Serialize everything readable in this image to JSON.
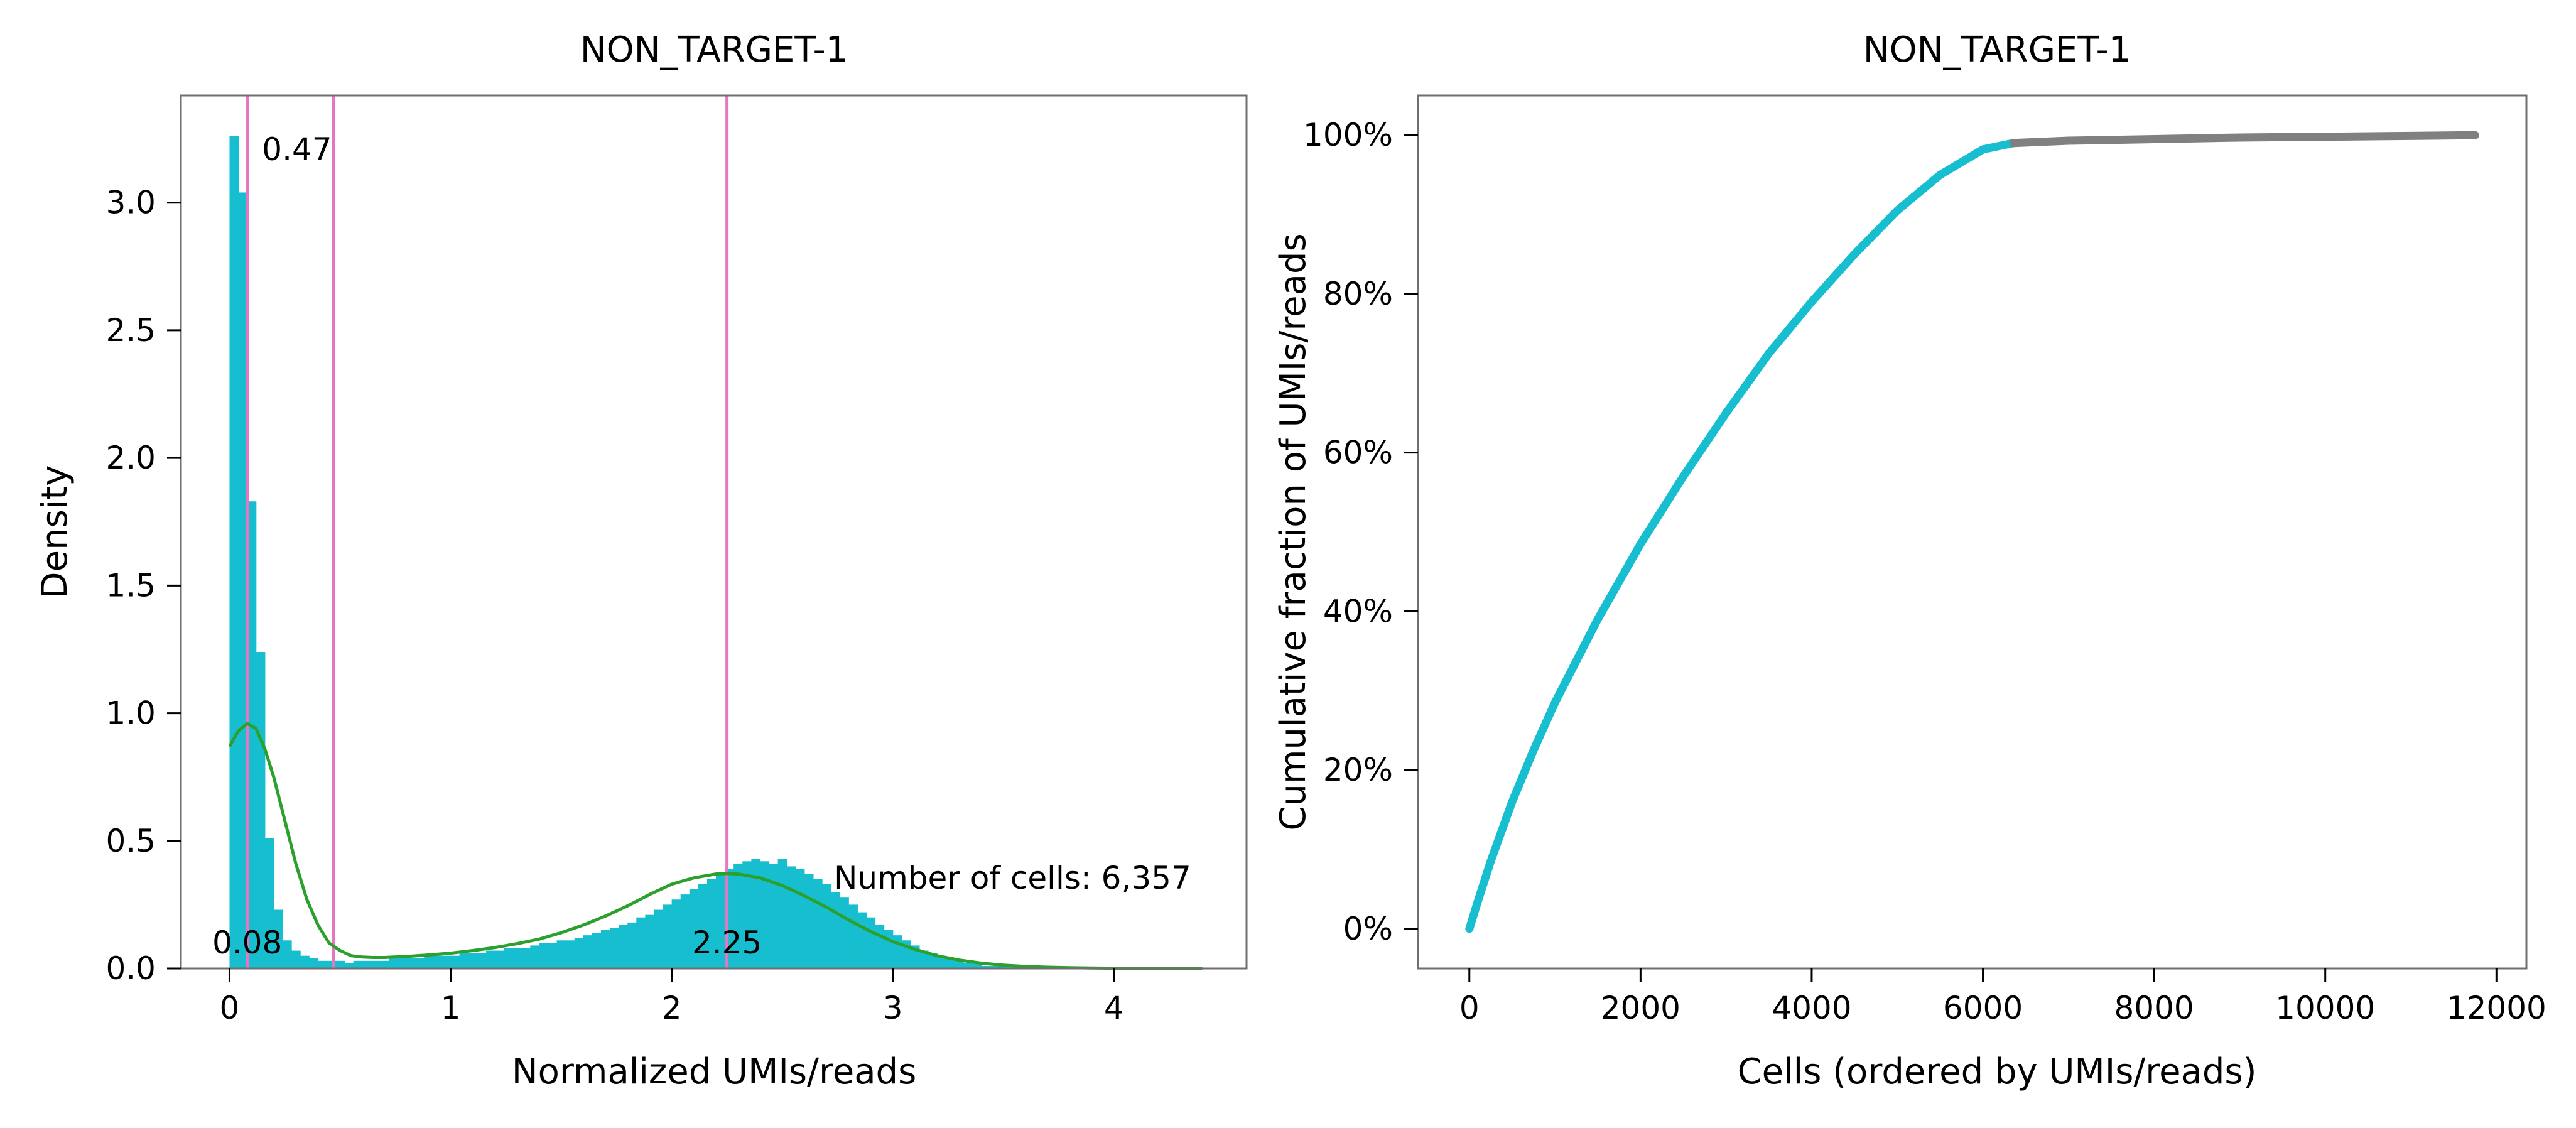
{
  "chart_data": [
    {
      "type": "bar",
      "title": "NON_TARGET-1",
      "xlabel": "Normalized UMIs/reads",
      "ylabel": "Density",
      "xlim": [
        -0.22,
        4.6
      ],
      "ylim": [
        0,
        3.42
      ],
      "xticks": [
        0,
        1,
        2,
        3,
        4
      ],
      "xtick_labels": [
        "0",
        "1",
        "2",
        "3",
        "4"
      ],
      "yticks": [
        0.0,
        0.5,
        1.0,
        1.5,
        2.0,
        2.5,
        3.0
      ],
      "ytick_labels": [
        "0.0",
        "0.5",
        "1.0",
        "1.5",
        "2.0",
        "2.5",
        "3.0"
      ],
      "grid": false,
      "hist_color": "#17becf",
      "kde_color": "#2ca02c",
      "threshold_color": "#e377c2",
      "histogram": {
        "bin_start": 0,
        "bin_width": 0.04,
        "densities": [
          3.26,
          3.04,
          1.83,
          1.24,
          0.51,
          0.23,
          0.11,
          0.07,
          0.05,
          0.04,
          0.03,
          0.03,
          0.03,
          0.02,
          0.03,
          0.03,
          0.03,
          0.03,
          0.04,
          0.04,
          0.04,
          0.04,
          0.05,
          0.05,
          0.05,
          0.05,
          0.06,
          0.06,
          0.06,
          0.07,
          0.07,
          0.08,
          0.08,
          0.08,
          0.09,
          0.1,
          0.1,
          0.11,
          0.11,
          0.12,
          0.13,
          0.14,
          0.15,
          0.16,
          0.17,
          0.18,
          0.2,
          0.21,
          0.23,
          0.25,
          0.27,
          0.29,
          0.31,
          0.33,
          0.35,
          0.37,
          0.39,
          0.41,
          0.42,
          0.43,
          0.42,
          0.41,
          0.43,
          0.4,
          0.39,
          0.37,
          0.35,
          0.33,
          0.3,
          0.28,
          0.25,
          0.22,
          0.2,
          0.17,
          0.15,
          0.13,
          0.11,
          0.09,
          0.07,
          0.06,
          0.05,
          0.04,
          0.03,
          0.02,
          0.02,
          0.01,
          0.01,
          0.01,
          0.01,
          0.005,
          0.005,
          0.003,
          0.002,
          0.002,
          0.001,
          0.001,
          0.001,
          0.001,
          0.001,
          0.001,
          0.001,
          0.001,
          0.001,
          0.001,
          0.001,
          0.001,
          0.001,
          0.001,
          0.001,
          0.001
        ]
      },
      "kde": {
        "x": [
          0.0,
          0.04,
          0.08,
          0.12,
          0.16,
          0.2,
          0.25,
          0.3,
          0.35,
          0.4,
          0.45,
          0.5,
          0.55,
          0.6,
          0.65,
          0.7,
          0.8,
          0.9,
          1.0,
          1.1,
          1.2,
          1.3,
          1.4,
          1.5,
          1.6,
          1.7,
          1.8,
          1.9,
          2.0,
          2.1,
          2.2,
          2.25,
          2.3,
          2.4,
          2.5,
          2.6,
          2.7,
          2.8,
          2.9,
          3.0,
          3.1,
          3.2,
          3.3,
          3.4,
          3.5,
          3.6,
          3.7,
          3.8,
          3.9,
          4.0,
          4.2,
          4.4
        ],
        "y": [
          0.87,
          0.93,
          0.96,
          0.94,
          0.86,
          0.75,
          0.58,
          0.41,
          0.27,
          0.17,
          0.1,
          0.07,
          0.05,
          0.045,
          0.043,
          0.043,
          0.047,
          0.053,
          0.06,
          0.07,
          0.082,
          0.097,
          0.115,
          0.14,
          0.17,
          0.205,
          0.245,
          0.29,
          0.33,
          0.355,
          0.37,
          0.372,
          0.37,
          0.355,
          0.325,
          0.285,
          0.24,
          0.19,
          0.145,
          0.105,
          0.075,
          0.05,
          0.033,
          0.021,
          0.013,
          0.008,
          0.005,
          0.003,
          0.002,
          0.001,
          0.0005,
          0.0002
        ]
      },
      "thresholds": [
        {
          "x": 0.08,
          "label": "0.08",
          "label_position": "bottom"
        },
        {
          "x": 0.47,
          "label": "0.47",
          "label_position": "top"
        },
        {
          "x": 2.25,
          "label": "2.25",
          "label_position": "bottom"
        }
      ],
      "annotation": "Number of cells: 6,357"
    },
    {
      "type": "line",
      "title": "NON_TARGET-1",
      "xlabel": "Cells (ordered by UMIs/reads)",
      "ylabel": "Cumulative fraction of UMIs/reads",
      "xlim": [
        -600,
        12350
      ],
      "ylim": [
        -0.05,
        1.05
      ],
      "xticks": [
        0,
        2000,
        4000,
        6000,
        8000,
        10000,
        12000
      ],
      "xtick_labels": [
        "0",
        "2000",
        "4000",
        "6000",
        "8000",
        "10000",
        "12000"
      ],
      "yticks": [
        0,
        0.2,
        0.4,
        0.6,
        0.8,
        1.0
      ],
      "ytick_labels": [
        "0%",
        "20%",
        "40%",
        "60%",
        "80%",
        "100%"
      ],
      "grid": false,
      "series": [
        {
          "color": "#17becf",
          "x": [
            0,
            100,
            250,
            500,
            750,
            1000,
            1500,
            2000,
            2500,
            3000,
            3500,
            4000,
            4500,
            5000,
            5500,
            6000,
            6357
          ],
          "y": [
            0,
            0.035,
            0.085,
            0.16,
            0.225,
            0.285,
            0.39,
            0.485,
            0.57,
            0.65,
            0.725,
            0.79,
            0.85,
            0.905,
            0.95,
            0.982,
            0.99
          ]
        },
        {
          "color": "#808080",
          "x": [
            6357,
            7000,
            8000,
            9000,
            10000,
            11000,
            11750
          ],
          "y": [
            0.99,
            0.993,
            0.995,
            0.997,
            0.998,
            0.999,
            1.0
          ]
        }
      ]
    }
  ]
}
